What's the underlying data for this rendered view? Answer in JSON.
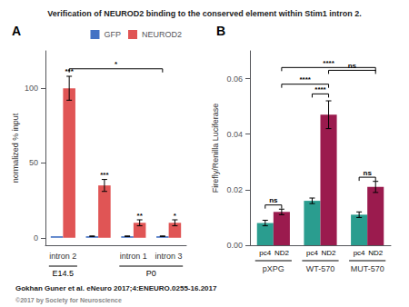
{
  "title": "Verification of NEUROD2 binding to the conserved element within Stim1 intron 2.",
  "annotations": [
    "Gokhan Guner et al. eNeuro 2017;4:ENEURO.0255-16.2017",
    "©2017 by Society for Neuroscience"
  ],
  "chart_data": [
    {
      "type": "bar",
      "label": "A",
      "ylabel": "normalized % input",
      "categories": [
        "intron 2",
        null,
        "intron 1",
        "intron 3"
      ],
      "category_groups": [
        {
          "label": "E14.5",
          "categories": [
            "intron 2"
          ]
        },
        {
          "label": "P0",
          "categories": [
            "intron 1",
            "intron 3"
          ]
        }
      ],
      "series": [
        {
          "name": "GFP",
          "color": "#4472c4",
          "values": [
            1,
            1,
            1,
            1
          ],
          "errors": [
            0,
            0.2,
            0.2,
            0.2
          ]
        },
        {
          "name": "NEUROD2",
          "color": "#e05555",
          "values": [
            100,
            35,
            10,
            10
          ],
          "errors": [
            8,
            4,
            2,
            2
          ],
          "annotations": [
            "***",
            "***",
            "**",
            "*"
          ]
        }
      ],
      "brackets": [
        {
          "from": {
            "category": "intron 2",
            "series": "NEUROD2"
          },
          "to": {
            "category": "intron 3",
            "series": "GFP"
          },
          "y": 113,
          "label": "*"
        }
      ],
      "ylim": [
        -5,
        125
      ],
      "yticks": [
        0,
        50,
        100
      ],
      "legend": "upper right",
      "grid": false
    },
    {
      "type": "bar",
      "label": "B",
      "ylabel": "Firefly/Renilla Luciferase",
      "categories": [
        "pXPG",
        "WT-570",
        "MUT-570"
      ],
      "series": [
        {
          "name": "pc4",
          "color": "#2a9d8f",
          "values": [
            0.008,
            0.016,
            0.011
          ],
          "errors": [
            0.001,
            0.001,
            0.001
          ]
        },
        {
          "name": "ND2",
          "color": "#9b1b4e",
          "values": [
            0.012,
            0.047,
            0.021
          ],
          "errors": [
            0.001,
            0.005,
            0.002
          ]
        }
      ],
      "brackets": [
        {
          "from": {
            "category": "pXPG",
            "series": "pc4"
          },
          "to": {
            "category": "pXPG",
            "series": "ND2"
          },
          "y": 0.0145,
          "label": "ns"
        },
        {
          "from": {
            "category": "WT-570",
            "series": "pc4"
          },
          "to": {
            "category": "WT-570",
            "series": "ND2"
          },
          "y": 0.0545,
          "label": "****"
        },
        {
          "from": {
            "category": "MUT-570",
            "series": "pc4"
          },
          "to": {
            "category": "MUT-570",
            "series": "ND2"
          },
          "y": 0.0245,
          "label": "ns"
        },
        {
          "from": {
            "category": "pXPG",
            "series": "ND2"
          },
          "to": {
            "category": "WT-570",
            "series": "ND2"
          },
          "y": 0.058,
          "label": "****"
        },
        {
          "from": {
            "category": "WT-570",
            "series": "ND2"
          },
          "to": {
            "category": "MUT-570",
            "series": "ND2"
          },
          "y": 0.063,
          "label": "ns"
        },
        {
          "from": {
            "category": "pXPG",
            "series": "ND2"
          },
          "to": {
            "category": "MUT-570",
            "series": "ND2"
          },
          "y": 0.064,
          "label": "****"
        }
      ],
      "ylim": [
        0,
        0.07
      ],
      "yticks": [
        {
          "value": 0,
          "label": "0.00"
        },
        {
          "value": 0.02,
          "label": "0.02"
        },
        {
          "value": 0.04,
          "label": "0.04"
        },
        {
          "value": 0.06,
          "label": "0.06"
        }
      ],
      "grid": false
    }
  ]
}
